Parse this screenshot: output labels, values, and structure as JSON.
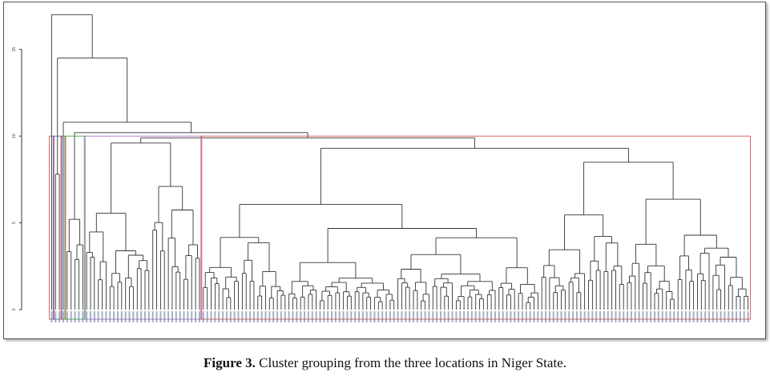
{
  "chart_data": {
    "type": "dendrogram",
    "title": "",
    "xlabel": "",
    "ylabel": "",
    "ylim": [
      0,
      15
    ],
    "y_ticks": [
      "0",
      "5",
      "10",
      "15"
    ],
    "cut_height": 10,
    "leaf_count": 180,
    "groups": [
      {
        "color": "#d04040",
        "leaves": 1
      },
      {
        "color": "#3050c8",
        "leaves": 2
      },
      {
        "color": "#d04040",
        "leaves": 1
      },
      {
        "color": "#30a030",
        "leaves": 5
      },
      {
        "color": "#a060c8",
        "leaves": 30
      },
      {
        "color": "#d04040",
        "leaves": 141
      }
    ],
    "merge_heights_top": [
      17.0,
      14.5,
      10.8,
      10.2,
      9.7,
      9.1
    ]
  },
  "caption": {
    "label": "Figure 3.",
    "text": " Cluster grouping from the three locations in Niger State."
  }
}
